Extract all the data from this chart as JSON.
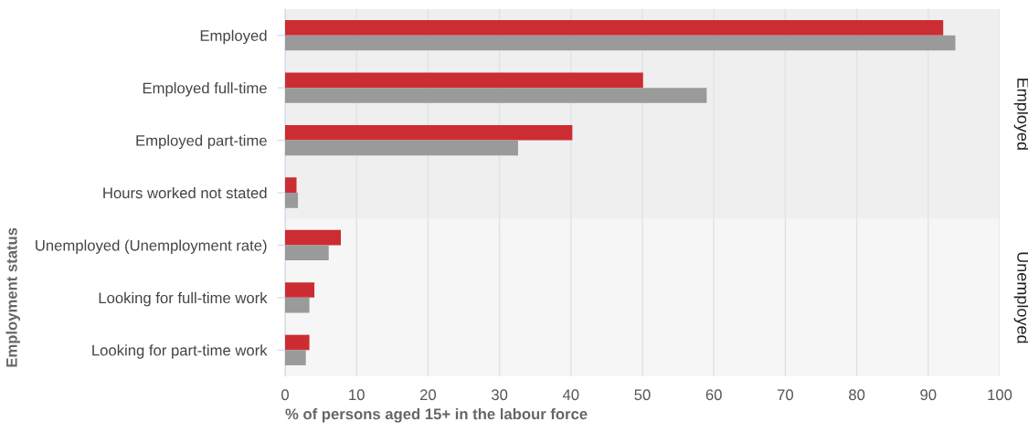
{
  "chart_data": [
    {
      "type": "bar",
      "orientation": "horizontal",
      "categories": [
        "Employed",
        "Employed full-time",
        "Employed part-time",
        "Hours worked not stated"
      ],
      "series": [
        {
          "color": "#cc2d32",
          "values": [
            92.1,
            50.1,
            40.2,
            1.6
          ]
        },
        {
          "color": "#9a9a9a",
          "values": [
            93.8,
            59.0,
            32.6,
            1.8
          ]
        }
      ],
      "xlim": [
        0,
        100
      ],
      "xticks": [
        0,
        10,
        20,
        30,
        40,
        50,
        60,
        70,
        80,
        90,
        100
      ],
      "grid": "x",
      "tick_labels": "y",
      "annotations": [
        "Employed"
      ]
    },
    {
      "type": "bar",
      "orientation": "horizontal",
      "categories": [
        "Unemployed (Unemployment rate)",
        "Looking for full-time work",
        "Looking for part-time work"
      ],
      "series": [
        {
          "color": "#cc2d32",
          "values": [
            7.8,
            4.1,
            3.4
          ]
        },
        {
          "color": "#9a9a9a",
          "values": [
            6.1,
            3.4,
            2.9
          ]
        }
      ],
      "xlim": [
        0,
        100
      ],
      "xticks": [
        0,
        10,
        20,
        30,
        40,
        50,
        60,
        70,
        80,
        90,
        100
      ],
      "grid": "x",
      "xlabel": "% of persons aged 15+ in the labour force",
      "ylabel": "Employment status",
      "annotations": [
        "Unemployed"
      ]
    }
  ]
}
